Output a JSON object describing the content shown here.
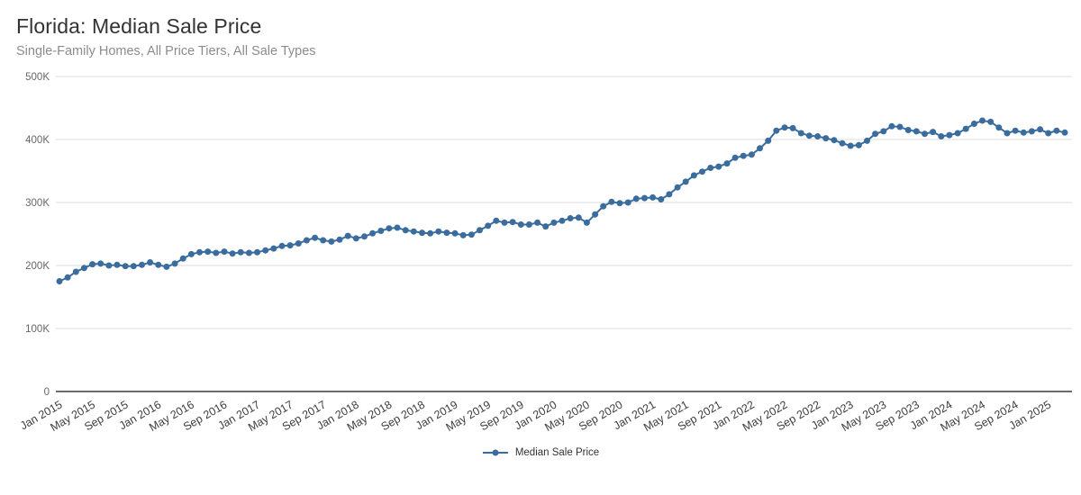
{
  "header": {
    "title": "Florida: Median Sale Price",
    "subtitle": "Single-Family Homes, All Price Tiers, All Sale Types"
  },
  "chart_data": {
    "type": "line",
    "title": "Florida: Median Sale Price",
    "subtitle": "Single-Family Homes, All Price Tiers, All Sale Types",
    "x_start": "Jan 2015",
    "x_interval": "monthly",
    "x_tick_labels": [
      "Jan 2015",
      "May 2015",
      "Sep 2015",
      "Jan 2016",
      "May 2016",
      "Sep 2016",
      "Jan 2017",
      "May 2017",
      "Sep 2017",
      "Jan 2018",
      "May 2018",
      "Sep 2018",
      "Jan 2019",
      "May 2019",
      "Sep 2019",
      "Jan 2020",
      "May 2020",
      "Sep 2020",
      "Jan 2021",
      "May 2021",
      "Sep 2021",
      "Jan 2022",
      "May 2022",
      "Sep 2022",
      "Jan 2023",
      "May 2023",
      "Sep 2023",
      "Jan 2024",
      "May 2024",
      "Sep 2024",
      "Jan 2025"
    ],
    "y_tick_labels": [
      "0",
      "100K",
      "200K",
      "300K",
      "400K",
      "500K"
    ],
    "y_unit": "USD (K)",
    "ylim": [
      0,
      500
    ],
    "grid": true,
    "legend_position": "bottom-center",
    "line_color": "#3a6d9e",
    "series": [
      {
        "name": "Median Sale Price",
        "color": "#3a6d9e",
        "values": [
          175,
          181,
          190,
          196,
          202,
          203,
          200,
          201,
          199,
          199,
          201,
          205,
          201,
          198,
          203,
          211,
          218,
          221,
          222,
          220,
          222,
          219,
          221,
          220,
          221,
          224,
          227,
          231,
          232,
          235,
          240,
          244,
          240,
          238,
          241,
          247,
          243,
          246,
          251,
          255,
          259,
          260,
          256,
          254,
          252,
          251,
          254,
          252,
          251,
          248,
          249,
          256,
          263,
          271,
          268,
          269,
          265,
          265,
          268,
          262,
          268,
          271,
          275,
          276,
          268,
          281,
          294,
          301,
          299,
          300,
          306,
          307,
          308,
          305,
          313,
          324,
          333,
          343,
          349,
          355,
          357,
          362,
          371,
          374,
          376,
          386,
          398,
          414,
          419,
          418,
          410,
          406,
          405,
          402,
          399,
          394,
          390,
          391,
          398,
          409,
          413,
          421,
          420,
          415,
          413,
          409,
          412,
          405,
          407,
          410,
          417,
          425,
          430,
          428,
          419,
          410,
          414,
          411,
          413,
          416,
          410,
          414,
          411
        ]
      }
    ]
  }
}
